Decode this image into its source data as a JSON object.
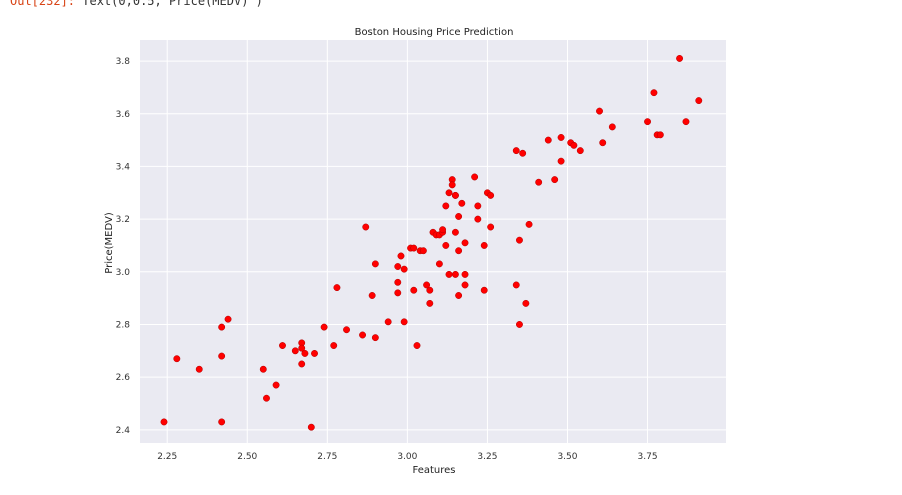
{
  "cell": {
    "out_label": "Out[232]:",
    "out_value": "Text(0,0.5,'Price(MEDV)')"
  },
  "colors": {
    "plot_bg": "#eaeaf2",
    "grid": "#ffffff",
    "marker": "#ff0000",
    "marker_edge": "#b00000",
    "tick_text": "#333333"
  },
  "chart_data": {
    "type": "scatter",
    "title": "Boston Housing Price Prediction",
    "xlabel": "Features",
    "ylabel": "Price(MEDV)",
    "xlim": [
      2.165,
      3.995
    ],
    "ylim": [
      2.35,
      3.88
    ],
    "xticks": [
      "2.25",
      "2.50",
      "2.75",
      "3.00",
      "3.25",
      "3.50",
      "3.75"
    ],
    "yticks": [
      "2.4",
      "2.6",
      "2.8",
      "3.0",
      "3.2",
      "3.4",
      "3.6",
      "3.8"
    ],
    "grid": true,
    "legend": "none",
    "points": [
      [
        2.24,
        2.43
      ],
      [
        2.28,
        2.67
      ],
      [
        2.35,
        2.63
      ],
      [
        2.42,
        2.43
      ],
      [
        2.42,
        2.68
      ],
      [
        2.42,
        2.79
      ],
      [
        2.44,
        2.82
      ],
      [
        2.55,
        2.63
      ],
      [
        2.56,
        2.52
      ],
      [
        2.59,
        2.57
      ],
      [
        2.61,
        2.72
      ],
      [
        2.65,
        2.7
      ],
      [
        2.67,
        2.73
      ],
      [
        2.67,
        2.71
      ],
      [
        2.67,
        2.65
      ],
      [
        2.68,
        2.69
      ],
      [
        2.7,
        2.41
      ],
      [
        2.71,
        2.69
      ],
      [
        2.74,
        2.79
      ],
      [
        2.77,
        2.72
      ],
      [
        2.78,
        2.94
      ],
      [
        2.81,
        2.78
      ],
      [
        2.86,
        2.76
      ],
      [
        2.87,
        3.17
      ],
      [
        2.89,
        2.91
      ],
      [
        2.9,
        2.75
      ],
      [
        2.9,
        3.03
      ],
      [
        2.94,
        2.81
      ],
      [
        2.97,
        2.92
      ],
      [
        2.97,
        2.96
      ],
      [
        2.97,
        3.02
      ],
      [
        2.98,
        3.06
      ],
      [
        2.99,
        3.01
      ],
      [
        2.99,
        2.81
      ],
      [
        3.01,
        3.09
      ],
      [
        3.02,
        3.09
      ],
      [
        3.02,
        2.93
      ],
      [
        3.03,
        2.72
      ],
      [
        3.04,
        3.08
      ],
      [
        3.05,
        3.08
      ],
      [
        3.06,
        2.95
      ],
      [
        3.07,
        2.93
      ],
      [
        3.07,
        2.88
      ],
      [
        3.08,
        3.15
      ],
      [
        3.09,
        3.14
      ],
      [
        3.1,
        3.14
      ],
      [
        3.1,
        3.03
      ],
      [
        3.11,
        3.15
      ],
      [
        3.11,
        3.16
      ],
      [
        3.12,
        3.25
      ],
      [
        3.12,
        3.1
      ],
      [
        3.13,
        2.99
      ],
      [
        3.13,
        3.3
      ],
      [
        3.14,
        3.35
      ],
      [
        3.14,
        3.33
      ],
      [
        3.15,
        3.29
      ],
      [
        3.15,
        2.99
      ],
      [
        3.15,
        3.29
      ],
      [
        3.15,
        3.15
      ],
      [
        3.16,
        3.08
      ],
      [
        3.16,
        3.21
      ],
      [
        3.16,
        2.91
      ],
      [
        3.17,
        3.26
      ],
      [
        3.18,
        3.11
      ],
      [
        3.18,
        2.95
      ],
      [
        3.18,
        2.99
      ],
      [
        3.21,
        3.36
      ],
      [
        3.22,
        3.25
      ],
      [
        3.22,
        3.2
      ],
      [
        3.24,
        3.1
      ],
      [
        3.24,
        2.93
      ],
      [
        3.25,
        3.3
      ],
      [
        3.26,
        3.17
      ],
      [
        3.26,
        3.29
      ],
      [
        3.34,
        3.46
      ],
      [
        3.34,
        2.95
      ],
      [
        3.35,
        2.8
      ],
      [
        3.35,
        3.12
      ],
      [
        3.36,
        3.45
      ],
      [
        3.37,
        2.88
      ],
      [
        3.38,
        3.18
      ],
      [
        3.41,
        3.34
      ],
      [
        3.44,
        3.5
      ],
      [
        3.46,
        3.35
      ],
      [
        3.48,
        3.51
      ],
      [
        3.48,
        3.42
      ],
      [
        3.51,
        3.49
      ],
      [
        3.52,
        3.48
      ],
      [
        3.54,
        3.46
      ],
      [
        3.6,
        3.61
      ],
      [
        3.61,
        3.49
      ],
      [
        3.64,
        3.55
      ],
      [
        3.75,
        3.57
      ],
      [
        3.77,
        3.68
      ],
      [
        3.78,
        3.52
      ],
      [
        3.79,
        3.52
      ],
      [
        3.85,
        3.81
      ],
      [
        3.87,
        3.57
      ],
      [
        3.91,
        3.65
      ]
    ]
  }
}
